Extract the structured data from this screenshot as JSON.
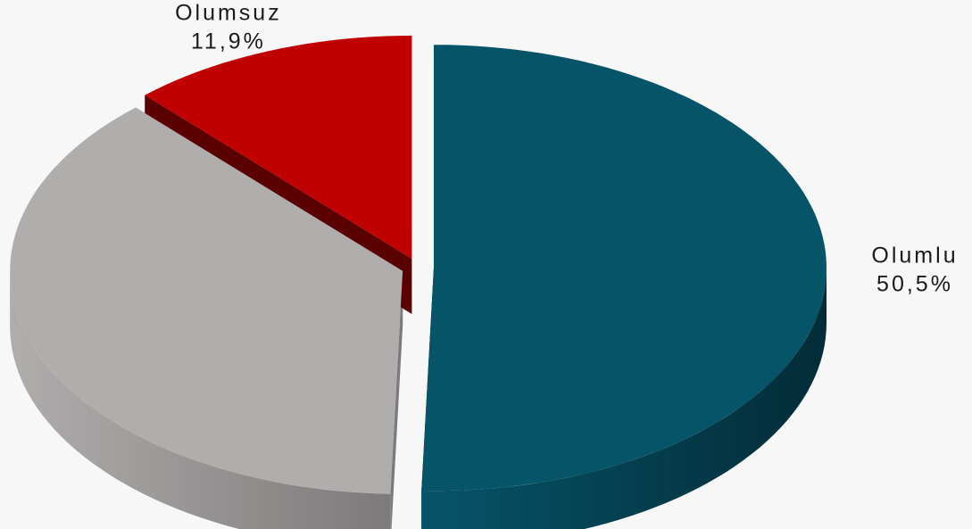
{
  "chart_data": {
    "type": "pie",
    "categories": [
      "Olumlu",
      null,
      "Olumsuz"
    ],
    "values": [
      50.5,
      37.6,
      11.9
    ],
    "value_labels": [
      "50,5%",
      null,
      "11,9%"
    ],
    "colors": [
      "#065468",
      "#b0adad",
      "#c00000"
    ],
    "side_colors": [
      "#032c38",
      "#7c7a7a",
      "#5a0000"
    ],
    "three_d": true
  }
}
